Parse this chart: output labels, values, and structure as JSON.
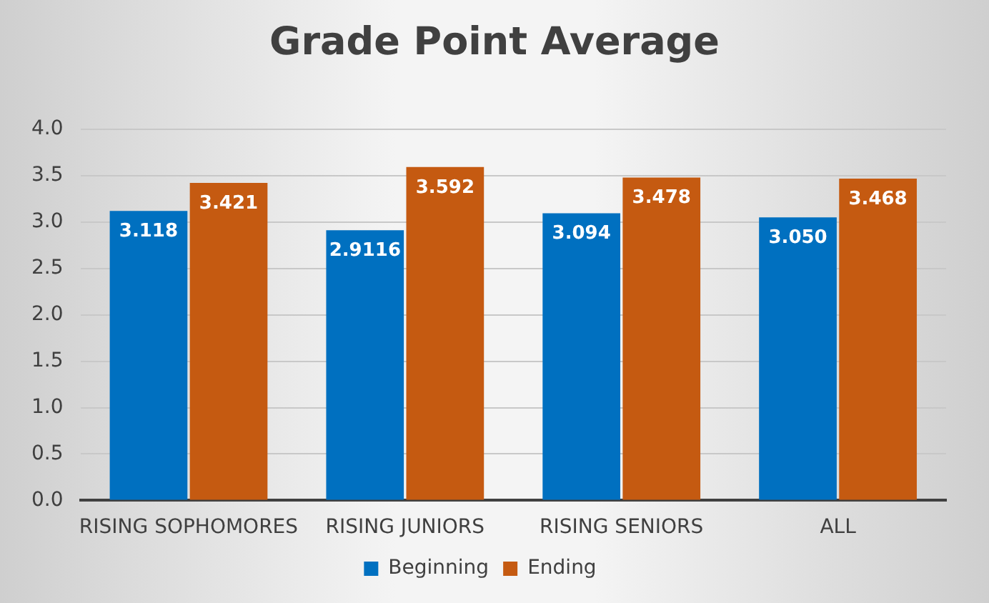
{
  "chart_data": {
    "type": "bar",
    "title": "Grade Point Average",
    "categories": [
      "RISING SOPHOMORES",
      "RISING JUNIORS",
      "RISING SENIORS",
      "ALL"
    ],
    "series": [
      {
        "name": "Beginning",
        "color": "#0070c0",
        "values": [
          3.118,
          2.9116,
          3.094,
          3.05
        ],
        "value_labels": [
          "3.118",
          "2.9116",
          "3.094",
          "3.050"
        ]
      },
      {
        "name": "Ending",
        "color": "#c55a11",
        "values": [
          3.421,
          3.592,
          3.478,
          3.468
        ],
        "value_labels": [
          "3.421",
          "3.592",
          "3.478",
          "3.468"
        ]
      }
    ],
    "ylim": [
      0,
      4
    ],
    "yticks": [
      {
        "value": 0,
        "label": "0.0"
      },
      {
        "value": 0.5,
        "label": "0.5"
      },
      {
        "value": 1,
        "label": "1.0"
      },
      {
        "value": 1.5,
        "label": "1.5"
      },
      {
        "value": 2,
        "label": "2.0"
      },
      {
        "value": 2.5,
        "label": "2.5"
      },
      {
        "value": 3,
        "label": "3.0"
      },
      {
        "value": 3.5,
        "label": "3.5"
      },
      {
        "value": 4,
        "label": "4.0"
      }
    ],
    "grid": "y",
    "legend": "bottom"
  }
}
